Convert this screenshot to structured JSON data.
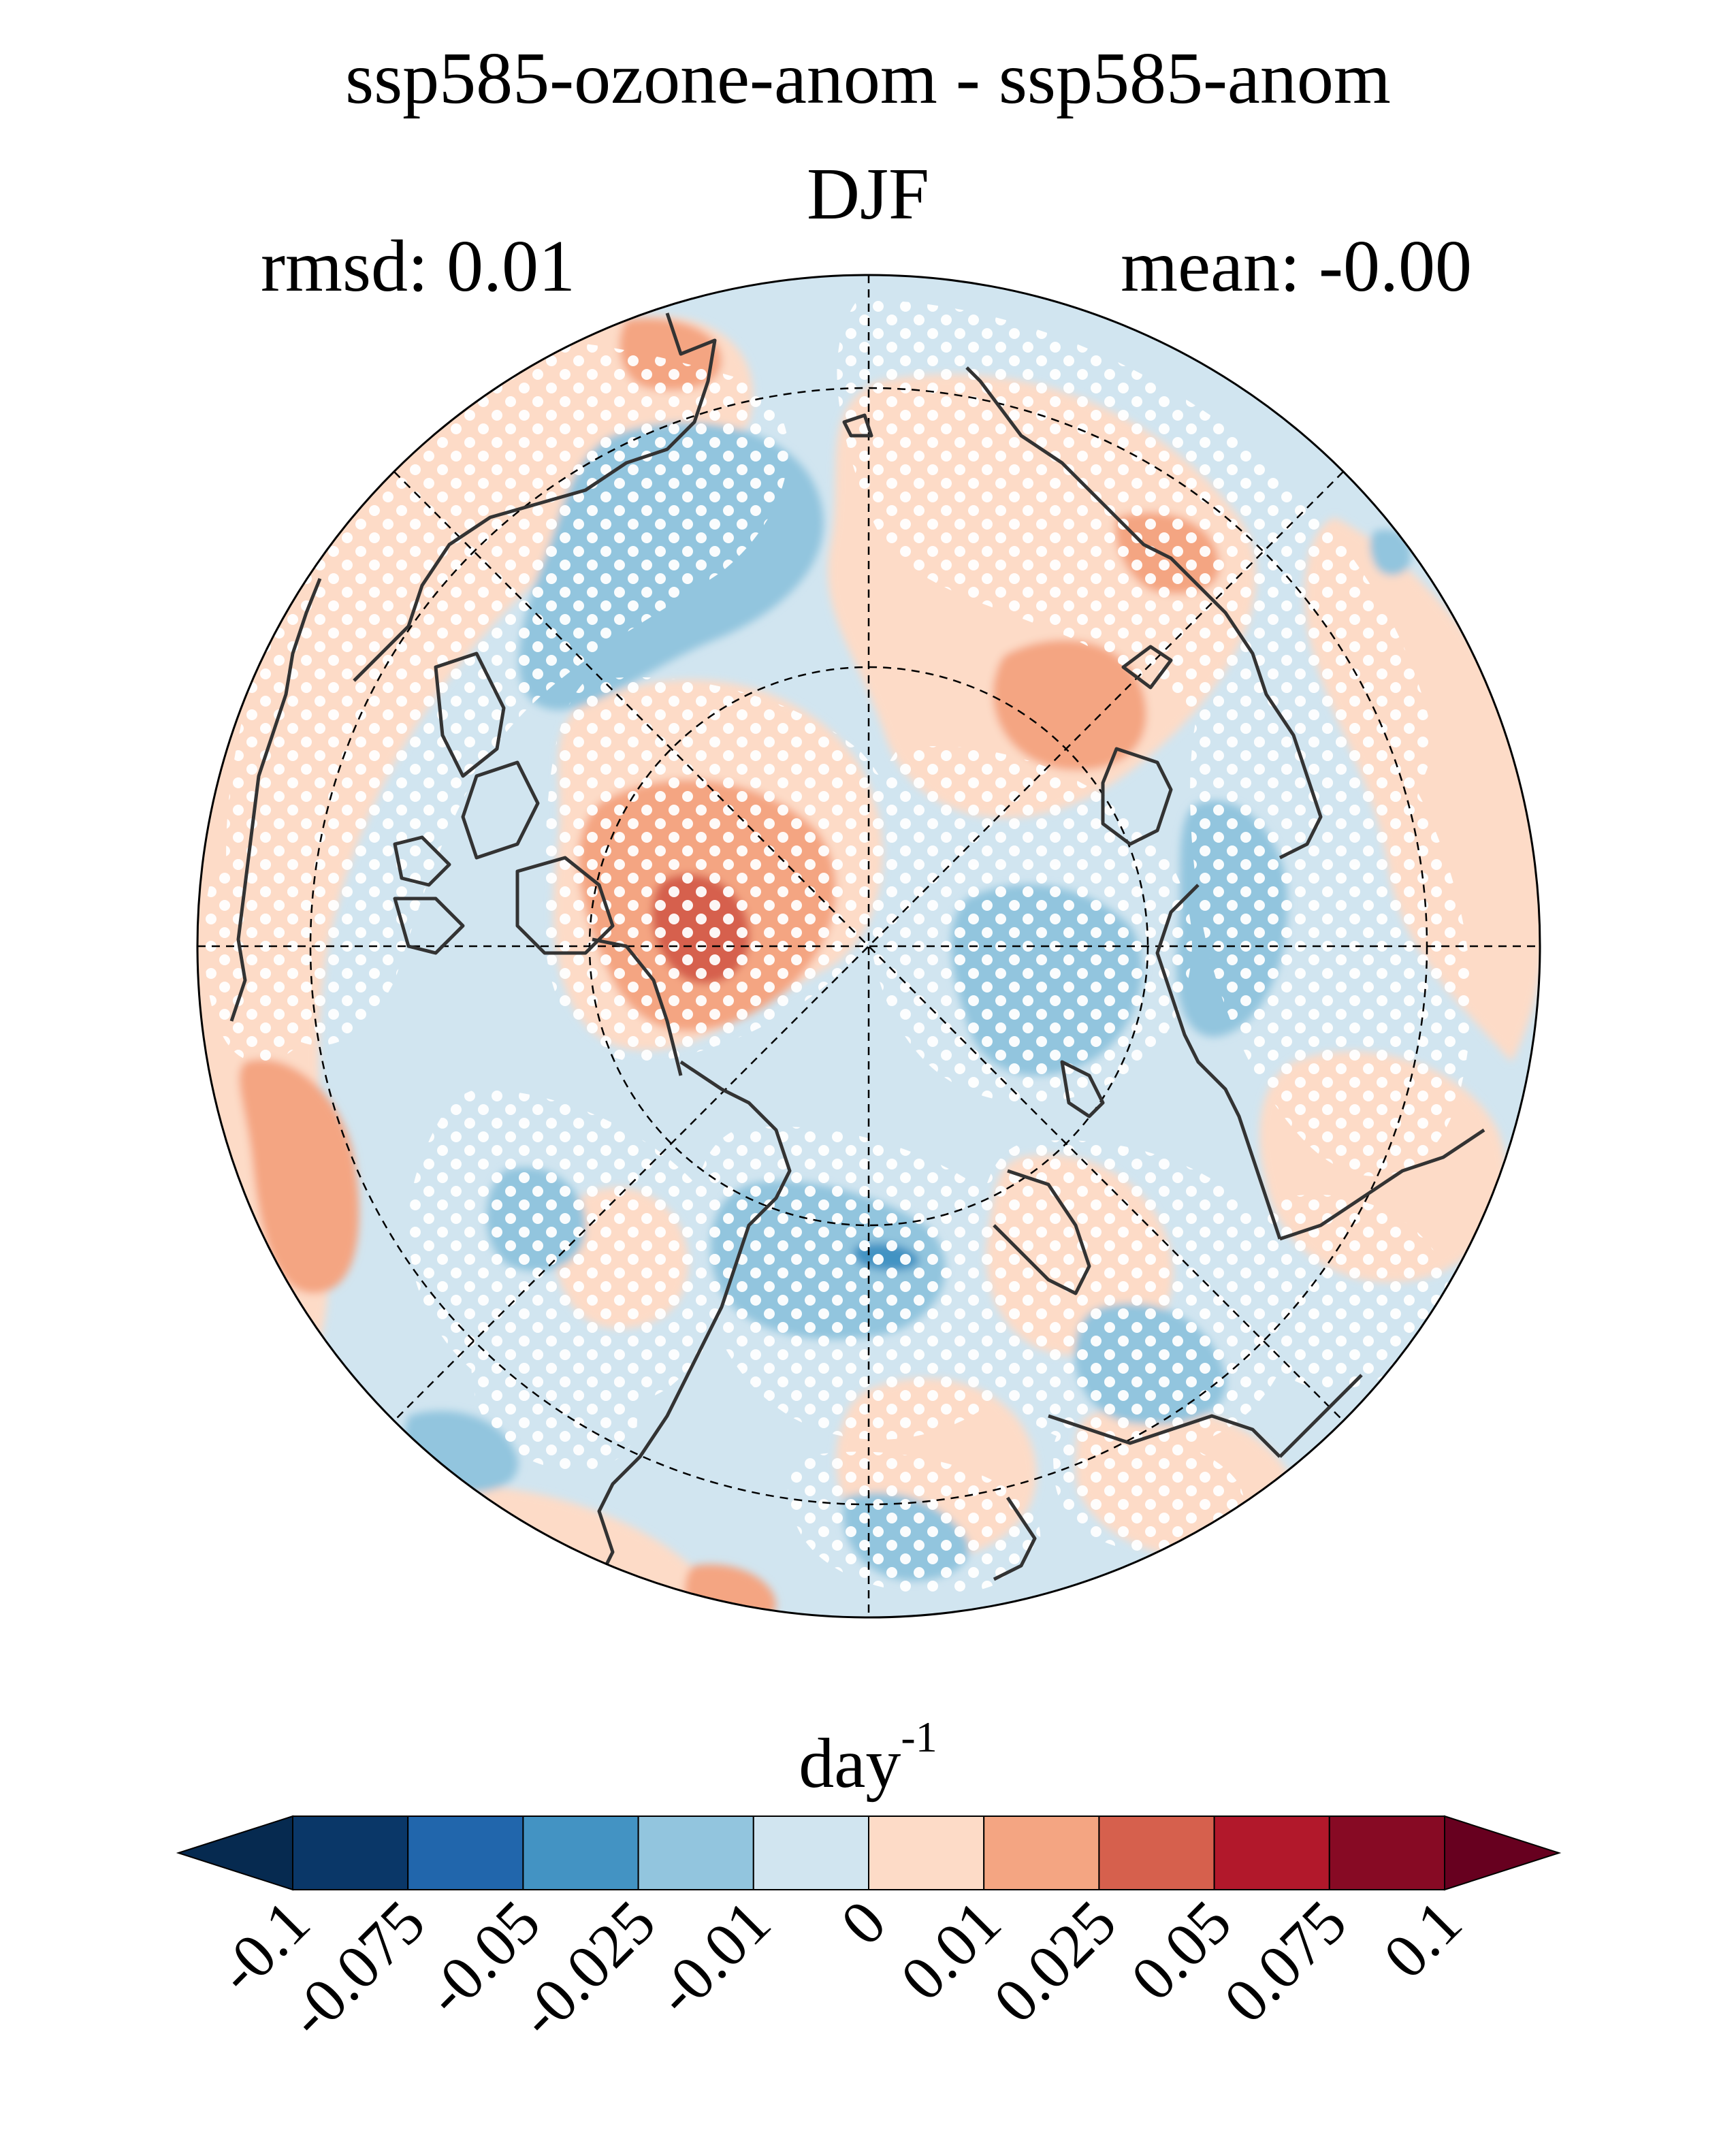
{
  "title": "ssp585-ozone-anom - ssp585-anom",
  "season": "DJF",
  "stats": {
    "rmsd": "rmsd: 0.01",
    "mean": "mean: -0.00"
  },
  "colorbar": {
    "units_base": "day",
    "units_exp": "-1",
    "tick_labels": [
      "-0.1",
      "-0.075",
      "-0.05",
      "-0.025",
      "-0.01",
      "0",
      "0.01",
      "0.025",
      "0.05",
      "0.075",
      "0.1"
    ],
    "colors": [
      "#062a50",
      "#0a3768",
      "#2166ac",
      "#4393c3",
      "#92c5de",
      "#d1e5f0",
      "#fddbc7",
      "#f4a582",
      "#d6604d",
      "#b2182b",
      "#870a24",
      "#67001f"
    ]
  },
  "map": {
    "projection": "north-polar-stereographic",
    "field_colors": {
      "pos_weak": "#fddbc7",
      "neg_weak": "#d1e5f0",
      "pos_mid": "#f4a582",
      "neg_mid": "#92c5de",
      "pos_strong": "#d6604d",
      "neg_strong": "#4393c3"
    },
    "coastline_color": "#333333",
    "stipple_color": "#ffffff"
  }
}
